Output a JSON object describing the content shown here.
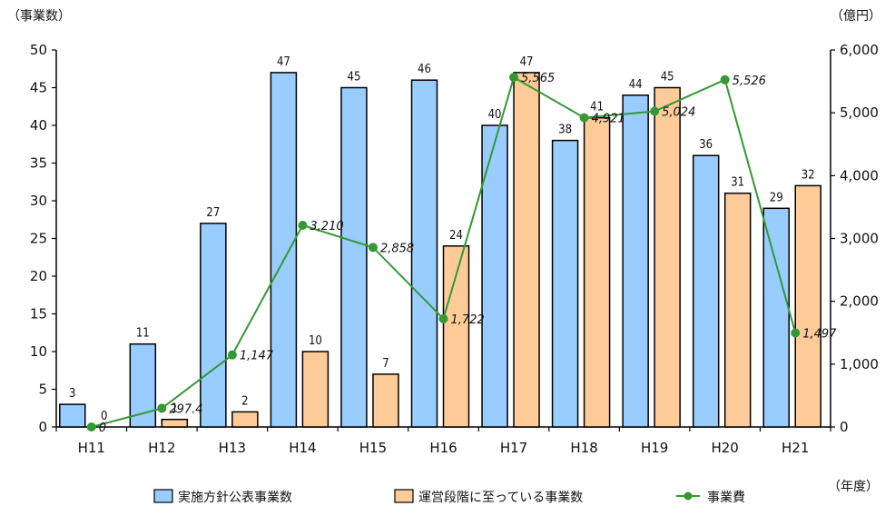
{
  "chart_data": {
    "type": "bar",
    "categories": [
      "H11",
      "H12",
      "H13",
      "H14",
      "H15",
      "H16",
      "H17",
      "H18",
      "H19",
      "H20",
      "H21"
    ],
    "series": [
      {
        "name": "実施方針公表事業数",
        "type": "bar",
        "axis": "left",
        "color": "#99CCFF",
        "values": [
          3,
          11,
          27,
          47,
          45,
          46,
          40,
          38,
          44,
          36,
          29
        ],
        "labels": [
          "3",
          "11",
          "27",
          "47",
          "45",
          "46",
          "40",
          "38",
          "44",
          "36",
          "29"
        ]
      },
      {
        "name": "運営段階に至っている事業数",
        "type": "bar",
        "axis": "left",
        "color": "#FFCC99",
        "values": [
          0,
          1,
          2,
          10,
          7,
          24,
          47,
          41,
          45,
          31,
          32
        ],
        "labels": [
          "0",
          "1",
          "2",
          "10",
          "7",
          "24",
          "47",
          "41",
          "45",
          "31",
          "32"
        ]
      },
      {
        "name": "事業費",
        "type": "line",
        "axis": "right",
        "color": "#339933",
        "values": [
          0,
          297.4,
          1147,
          3210,
          2858,
          1722,
          5565,
          4921,
          5024,
          5526,
          1497
        ],
        "labels": [
          "0",
          "297.4",
          "1,147",
          "3,210",
          "2,858",
          "1,722",
          "5,565",
          "4,921",
          "5,024",
          "5,526",
          "1,497"
        ]
      }
    ],
    "yleft": {
      "label": "（事業数）",
      "min": 0,
      "max": 50,
      "ticks": [
        "0",
        "5",
        "10",
        "15",
        "20",
        "25",
        "30",
        "35",
        "40",
        "45",
        "50"
      ]
    },
    "yright": {
      "label": "（億円）",
      "min": 0,
      "max": 6000,
      "ticks": [
        "0",
        "1,000",
        "2,000",
        "3,000",
        "4,000",
        "5,000",
        "6,000"
      ]
    },
    "xlabel": "（年度）",
    "legend_position": "bottom",
    "grid": false
  }
}
